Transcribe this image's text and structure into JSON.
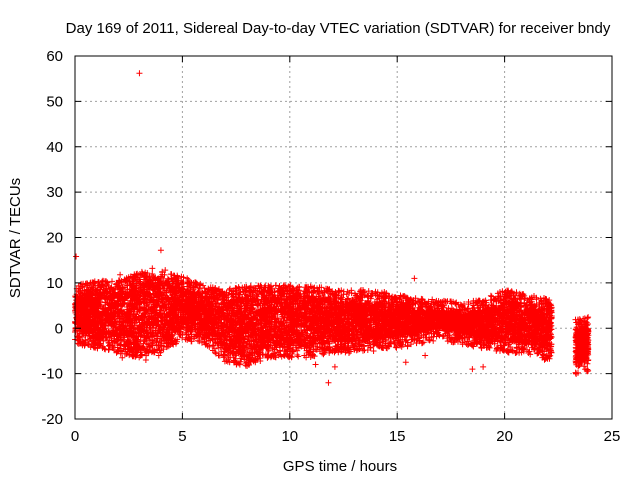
{
  "chart_data": {
    "type": "scatter",
    "title": "Day 169 of 2011, Sidereal Day-to-day VTEC variation (SDTVAR) for receiver bndy",
    "xlabel": "GPS time / hours",
    "ylabel": "SDTVAR / TECUs",
    "xlim": [
      0,
      25
    ],
    "ylim": [
      -20,
      60
    ],
    "xticks": [
      0,
      5,
      10,
      15,
      20,
      25
    ],
    "yticks": [
      -20,
      -10,
      0,
      10,
      20,
      30,
      40,
      50,
      60
    ],
    "grid": true,
    "marker": "+",
    "color": "#ff0000",
    "band": [
      [
        0.0,
        -1,
        7
      ],
      [
        1.0,
        -2,
        8
      ],
      [
        2.0,
        -3,
        8
      ],
      [
        3.0,
        -4,
        10
      ],
      [
        4.0,
        -3,
        10
      ],
      [
        5.0,
        0,
        9
      ],
      [
        6.0,
        -1,
        7
      ],
      [
        7.0,
        -5,
        6
      ],
      [
        8.0,
        -6,
        7
      ],
      [
        9.0,
        -4,
        7
      ],
      [
        10.0,
        -4,
        7
      ],
      [
        11.0,
        -4,
        7
      ],
      [
        12.0,
        -3,
        6
      ],
      [
        13.0,
        -3,
        6
      ],
      [
        14.0,
        -2,
        6
      ],
      [
        15.0,
        -2,
        5
      ],
      [
        16.0,
        -1,
        4
      ],
      [
        17.0,
        0,
        4
      ],
      [
        18.0,
        -1,
        3
      ],
      [
        19.0,
        -2,
        4
      ],
      [
        20.0,
        -3,
        6
      ],
      [
        21.0,
        -3,
        5
      ],
      [
        22.0,
        -5,
        4
      ],
      [
        22.2,
        -5,
        4
      ]
    ],
    "band2": [
      [
        23.3,
        -8,
        0
      ],
      [
        23.9,
        -7,
        0
      ]
    ],
    "outliers": [
      [
        3.0,
        56.2
      ],
      [
        0.05,
        15.8
      ],
      [
        4.0,
        17.2
      ],
      [
        15.8,
        11.0
      ],
      [
        2.1,
        11.8
      ],
      [
        3.6,
        13.2
      ],
      [
        4.2,
        12.8
      ],
      [
        2.2,
        -6.5
      ],
      [
        0.6,
        -2.5
      ],
      [
        1.1,
        -3.5
      ],
      [
        3.3,
        -7.0
      ],
      [
        3.9,
        -6.0
      ],
      [
        7.2,
        -7.5
      ],
      [
        8.0,
        -7.0
      ],
      [
        11.2,
        -8.0
      ],
      [
        11.8,
        -12.0
      ],
      [
        12.1,
        -8.5
      ],
      [
        14.4,
        8.0
      ],
      [
        16.3,
        -6.0
      ],
      [
        18.5,
        -9.0
      ],
      [
        19.0,
        -8.5
      ],
      [
        19.4,
        7.0
      ],
      [
        23.5,
        2.0
      ],
      [
        23.7,
        -2.5
      ],
      [
        17.1,
        5.8
      ],
      [
        12.5,
        7.5
      ],
      [
        9.3,
        8.0
      ],
      [
        6.7,
        8.5
      ],
      [
        13.9,
        -5.0
      ],
      [
        15.4,
        -7.5
      ]
    ]
  }
}
